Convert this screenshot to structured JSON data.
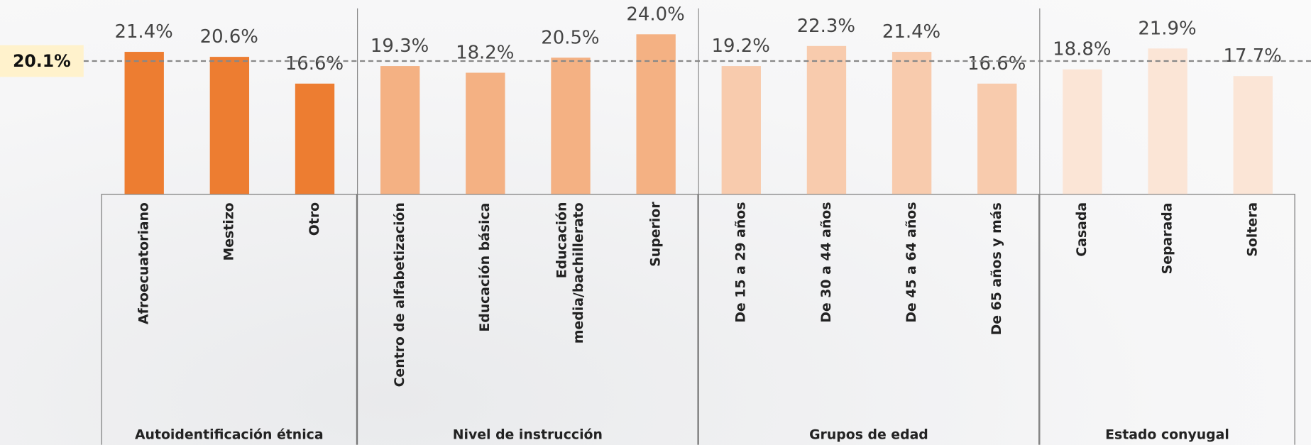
{
  "chart_data": {
    "type": "bar",
    "reference_line": {
      "value": 20.1,
      "label": "20.1%"
    },
    "groups": [
      {
        "name": "Autoidentificación étnica",
        "color": "#ED7D31",
        "categories": [
          "Afroecuatoriano",
          "Mestizo",
          "Otro"
        ],
        "values": [
          21.4,
          20.6,
          16.6
        ],
        "value_labels": [
          "21.4%",
          "20.6%",
          "16.6%"
        ]
      },
      {
        "name": "Nivel de instrucción",
        "color": "#F4B183",
        "categories": [
          "Centro de alfabetización",
          "Educación básica",
          "Educación\nmedia/bachillerato",
          "Superior"
        ],
        "values": [
          19.3,
          18.2,
          20.5,
          24.0
        ],
        "value_labels": [
          "19.3%",
          "18.2%",
          "20.5%",
          "24.0%"
        ]
      },
      {
        "name": "Grupos de edad",
        "color": "#F8CBAD",
        "categories": [
          "De 15 a 29 años",
          "De 30 a 44 años",
          "De 45 a 64 años",
          "De 65 años y más"
        ],
        "values": [
          19.2,
          22.3,
          21.4,
          16.6
        ],
        "value_labels": [
          "19.2%",
          "22.3%",
          "21.4%",
          "16.6%"
        ]
      },
      {
        "name": "Estado conyugal",
        "color": "#FBE5D6",
        "categories": [
          "Casada",
          "Separada",
          "Soltera"
        ],
        "values": [
          18.8,
          21.9,
          17.7
        ],
        "value_labels": [
          "18.8%",
          "21.9%",
          "17.7%"
        ]
      }
    ]
  }
}
